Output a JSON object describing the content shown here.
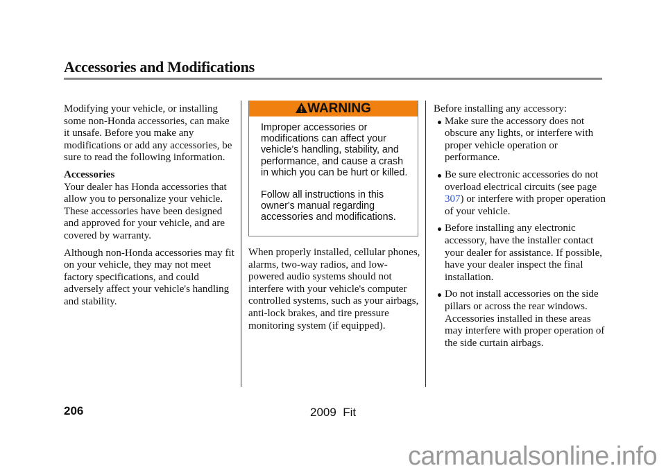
{
  "header": {
    "title": "Accessories and Modifications"
  },
  "col1": {
    "intro": "Modifying your vehicle, or installing some non-Honda accessories, can make it unsafe. Before you make any modifications or add any accessories, be sure to read the following information.",
    "heading": "Accessories",
    "para1": "Your dealer has Honda accessories that allow you to personalize your vehicle. These accessories have been designed and approved for your vehicle, and are covered by warranty.",
    "para2": "Although non-Honda accessories may fit on your vehicle, they may not meet factory specifications, and could adversely affect your vehicle's handling and stability."
  },
  "warning": {
    "icon": "warning-triangle-icon",
    "label": "WARNING",
    "color": "#f08010",
    "text1": "Improper accessories or modifications can affect your vehicle's handling, stability, and performance, and cause a crash in which you can be hurt or killed.",
    "text2": "Follow all instructions in this owner's manual regarding accessories and modifications."
  },
  "col2": {
    "para": "When properly installed, cellular phones, alarms, two-way radios, and low-powered audio systems should not interfere with your vehicle's computer controlled systems, such as your airbags, anti-lock brakes, and tire pressure monitoring system (if equipped)."
  },
  "col3": {
    "intro": "Before installing any accessory:",
    "bullets": [
      "Make sure the accessory does not obscure any lights, or interfere with proper vehicle operation or performance.",
      {
        "pre": "Be sure electronic accessories do not overload electrical circuits (see page ",
        "link": "307",
        "post": ") or interfere with proper operation of your vehicle."
      },
      "Before installing any electronic accessory, have the installer contact your dealer for assistance. If possible, have your dealer inspect the final installation.",
      "Do not install accessories on the side pillars or across the rear windows. Accessories installed in these areas may interfere with proper operation of the side curtain airbags."
    ]
  },
  "footer": {
    "page_number": "206",
    "model": "2009  Fit",
    "watermark": "carmanualsonline.info"
  }
}
